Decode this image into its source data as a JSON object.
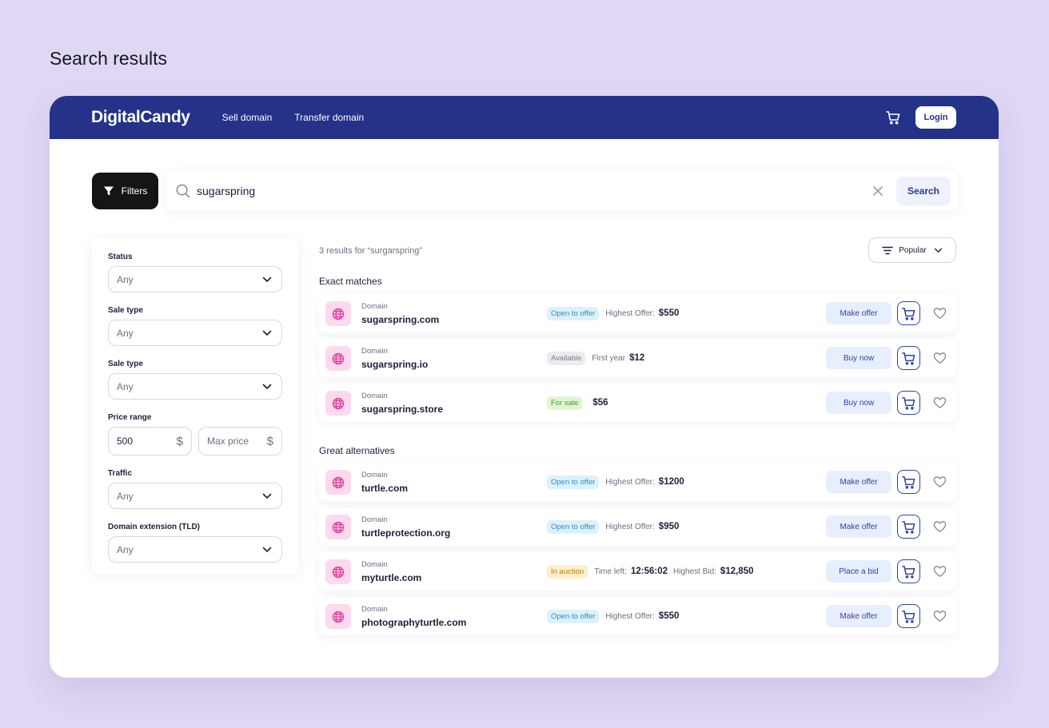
{
  "page_title": "Search results",
  "header": {
    "logo": "DigitalCandy",
    "nav": [
      "Sell domain",
      "Transfer domain"
    ],
    "login_label": "Login"
  },
  "search": {
    "filters_label": "Filters",
    "query": "sugarspring",
    "button_label": "Search"
  },
  "filters": {
    "status": {
      "label": "Status",
      "value": "Any"
    },
    "sale_type_1": {
      "label": "Sale type",
      "value": "Any"
    },
    "sale_type_2": {
      "label": "Sale type",
      "value": "Any"
    },
    "price_range": {
      "label": "Price range",
      "min": "500",
      "max_placeholder": "Max price",
      "currency": "$"
    },
    "traffic": {
      "label": "Traffic",
      "value": "Any"
    },
    "tld": {
      "label": "Domain extension (TLD)",
      "value": "Any"
    }
  },
  "results": {
    "count_text": "3 results for “surgarspring”",
    "sort_label": "Popular",
    "exact_title": "Exact matches",
    "alternatives_title": "Great alternatives",
    "domain_label": "Domain",
    "exact": [
      {
        "name": "sugarspring.com",
        "badge": "Open to offer",
        "badge_color": "blue",
        "label1": "Highest Offer:",
        "value1": "$550",
        "action": "Make offer"
      },
      {
        "name": "sugarspring.io",
        "badge": "Available",
        "badge_color": "gray",
        "label1": "First year",
        "value1": "$12",
        "action": "Buy now"
      },
      {
        "name": "sugarspring.store",
        "badge": "For sale",
        "badge_color": "green",
        "label1": "",
        "value1": "$56",
        "action": "Buy now"
      }
    ],
    "alternatives": [
      {
        "name": "turtle.com",
        "badge": "Open to offer",
        "badge_color": "blue",
        "label1": "Highest Offer:",
        "value1": "$1200",
        "action": "Make offer"
      },
      {
        "name": "turtleprotection.org",
        "badge": "Open to offer",
        "badge_color": "blue",
        "label1": "Highest Offer:",
        "value1": "$950",
        "action": "Make offer"
      },
      {
        "name": "myturtle.com",
        "badge": "In auction",
        "badge_color": "yellow",
        "label1": "Time left:",
        "value1": "12:56:02",
        "label2": "Highest Bid:",
        "value2": "$12,850",
        "action": "Place a bid"
      },
      {
        "name": "photographyturtle.com",
        "badge": "Open to offer",
        "badge_color": "blue",
        "label1": "Highest Offer:",
        "value1": "$550",
        "action": "Make offer"
      }
    ]
  },
  "colors": {
    "background": "#e0d7f4",
    "header": "#24328a",
    "accent": "#2e44a8",
    "globe_bg": "#fcd9ec",
    "globe": "#e0399a"
  }
}
